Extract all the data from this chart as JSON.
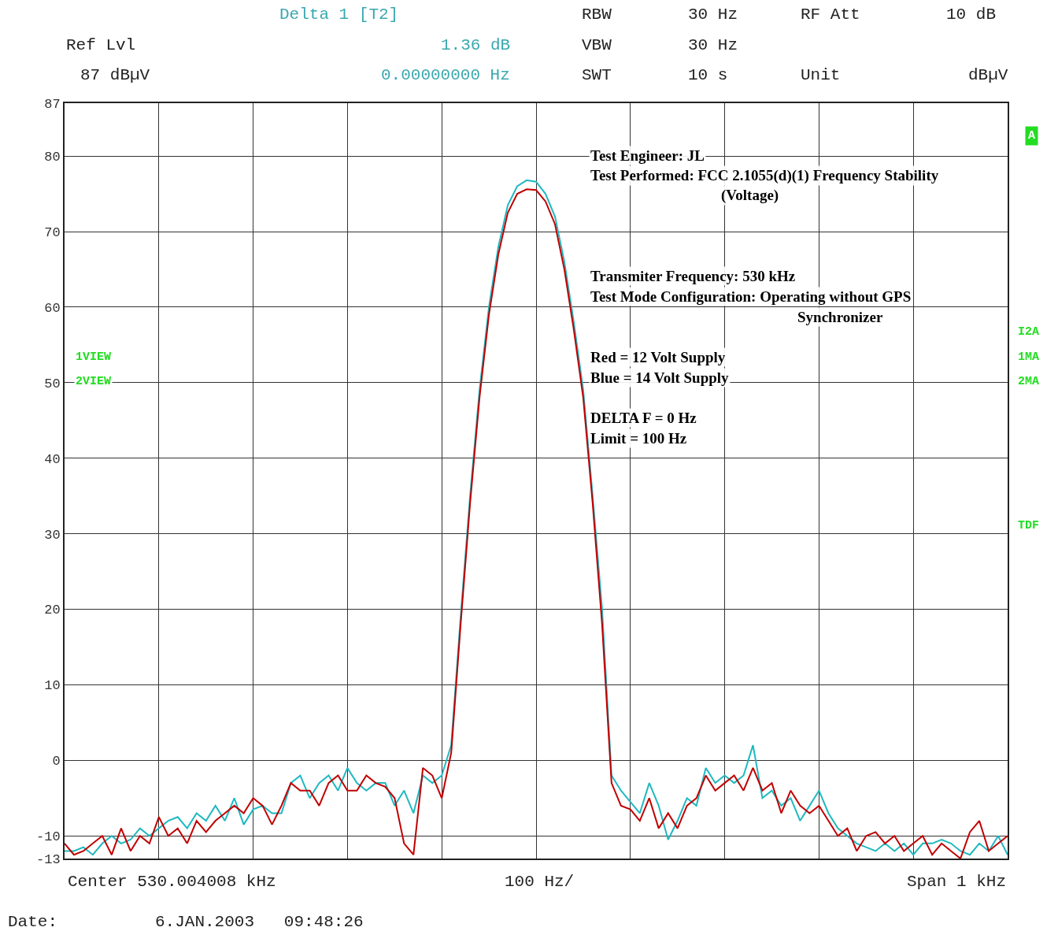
{
  "chart_data": {
    "type": "line",
    "categories": [
      null,
      null,
      null,
      null,
      null,
      null,
      null,
      null,
      null,
      null,
      null,
      null,
      null,
      null,
      null,
      null,
      null,
      null,
      null,
      null,
      null,
      null,
      null,
      null,
      null,
      null,
      null,
      null,
      null,
      null,
      null,
      null,
      null,
      null,
      null,
      null,
      null,
      null,
      null,
      null,
      null,
      null,
      null,
      null,
      null,
      null,
      null,
      null,
      null,
      null,
      null,
      null,
      null,
      null,
      null,
      null,
      null,
      null,
      null,
      null,
      null,
      null,
      null,
      null,
      null,
      null,
      null,
      null,
      null,
      null,
      null,
      null,
      null,
      null,
      null,
      null,
      null,
      null,
      null,
      null,
      null,
      null,
      null,
      null,
      null,
      null,
      null,
      null,
      null,
      null,
      null,
      null,
      null,
      null,
      null,
      null,
      null,
      null,
      null,
      null,
      null
    ],
    "series": [
      {
        "color": "#20b8c0",
        "values": [
          -12,
          -12,
          -11.5,
          -12.5,
          -11,
          -10,
          -11,
          -10.5,
          -9,
          -10,
          -9,
          -8,
          -7.5,
          -9,
          -7,
          -8,
          -6,
          -8,
          -5,
          -8.5,
          -6.5,
          -6,
          -7,
          -7,
          -3,
          -2,
          -5,
          -3,
          -2,
          -4,
          -1,
          -3,
          -4,
          -3,
          -3,
          -6,
          -4,
          -7,
          -2,
          -3,
          -2,
          2,
          19,
          35,
          49,
          60,
          68,
          73.5,
          76,
          76.8,
          76.6,
          75,
          72,
          66,
          58,
          49,
          35,
          20,
          -2,
          -4,
          -5.5,
          -7,
          -3,
          -6,
          -10.5,
          -8,
          -5,
          -6,
          -1,
          -3,
          -2,
          -3,
          -2,
          2,
          -5,
          -4,
          -6,
          -5,
          -8,
          -6,
          -4,
          -7,
          -9,
          -10,
          -11,
          -11.5,
          -12,
          -11,
          -12,
          -11,
          -12.5,
          -11,
          -11,
          -10.5,
          -11,
          -12,
          -12.5,
          -11,
          -12,
          -10,
          -12.5
        ]
      },
      {
        "color": "#c00000",
        "values": [
          -11,
          -12.5,
          -12,
          -11,
          -10,
          -12.5,
          -9,
          -12,
          -10,
          -11,
          -7.5,
          -10,
          -9,
          -11,
          -8,
          -9.5,
          -8,
          -7,
          -6,
          -7,
          -5,
          -6,
          -8.5,
          -6,
          -3,
          -4,
          -4,
          -6,
          -3,
          -2,
          -4,
          -4,
          -2,
          -3,
          -3.5,
          -5,
          -11,
          -12.5,
          -1,
          -2,
          -5,
          1,
          18,
          34,
          48,
          59,
          67,
          72.5,
          75,
          75.6,
          75.5,
          74,
          71,
          65,
          57,
          48,
          34,
          18,
          -3,
          -6,
          -6.5,
          -8,
          -5,
          -9,
          -7,
          -9,
          -6,
          -5,
          -2,
          -4,
          -3,
          -2,
          -4,
          -1,
          -4,
          -3,
          -7,
          -4,
          -6,
          -7,
          -6,
          -8,
          -10,
          -9,
          -12,
          -10,
          -9.5,
          -11,
          -10,
          -12,
          -11,
          -10,
          -12.5,
          -11,
          -12,
          -13,
          -9.5,
          -8,
          -12,
          -11,
          -10
        ]
      }
    ],
    "ylim": [
      -13,
      87
    ],
    "yticks": [
      87,
      80,
      70,
      60,
      50,
      40,
      30,
      20,
      10,
      0,
      -10,
      -13
    ],
    "grid": true,
    "tick_labels": "y",
    "marker": "none",
    "line_style": "solid",
    "annotations": [
      "Delta 1 [T2]",
      "Ref Lvl",
      "1.36 dB",
      "87 dBµV",
      "0.00000000 Hz",
      "RBW",
      "30 Hz",
      "VBW",
      "30 Hz",
      "SWT",
      "10 s",
      "RF Att",
      "10 dB",
      "Unit",
      "dBµV",
      "1VIEW",
      "2VIEW",
      "A",
      "I2A",
      "1MA",
      "2MA",
      "TDF",
      "Test Engineer: JL",
      "Test Performed: FCC 2.1055(d)(1) Frequency Stability",
      "(Voltage)",
      "Transmiter Frequency: 530 kHz",
      "Test Mode Configuration: Operating without GPS",
      "Synchronizer",
      "Red = 12 Volt Supply",
      "Blue = 14 Volt Supply",
      "DELTA F = 0 Hz",
      "Limit = 100 Hz",
      "Center 530.004008 kHz",
      "100 Hz/",
      "Span 1 kHz",
      "Date:",
      "6.JAN.2003   09:48:26"
    ]
  }
}
